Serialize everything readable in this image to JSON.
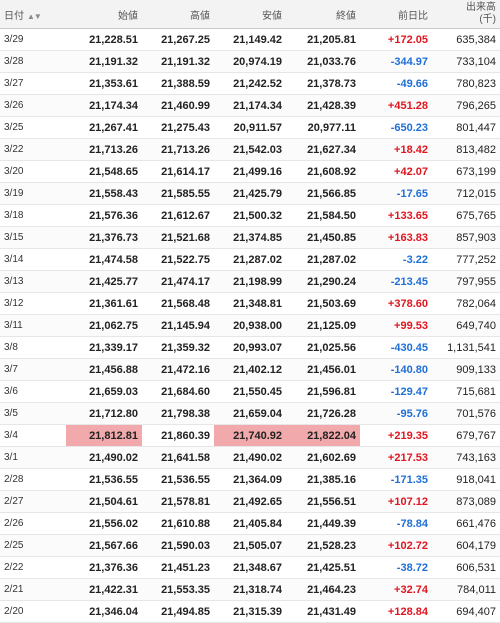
{
  "header": {
    "date": "日付",
    "open": "始値",
    "high": "高値",
    "low": "安値",
    "close": "終値",
    "change": "前日比",
    "volume_line1": "出来高",
    "volume_line2": "(千)"
  },
  "rows": [
    {
      "date": "3/29",
      "open": "21,228.51",
      "high": "21,267.25",
      "low": "21,149.42",
      "close": "21,205.81",
      "change": "+172.05",
      "volume": "635,384"
    },
    {
      "date": "3/28",
      "open": "21,191.32",
      "high": "21,191.32",
      "low": "20,974.19",
      "close": "21,033.76",
      "change": "-344.97",
      "volume": "733,104"
    },
    {
      "date": "3/27",
      "open": "21,353.61",
      "high": "21,388.59",
      "low": "21,242.52",
      "close": "21,378.73",
      "change": "-49.66",
      "volume": "780,823"
    },
    {
      "date": "3/26",
      "open": "21,174.34",
      "high": "21,460.99",
      "low": "21,174.34",
      "close": "21,428.39",
      "change": "+451.28",
      "volume": "796,265"
    },
    {
      "date": "3/25",
      "open": "21,267.41",
      "high": "21,275.43",
      "low": "20,911.57",
      "close": "20,977.11",
      "change": "-650.23",
      "volume": "801,447"
    },
    {
      "date": "3/22",
      "open": "21,713.26",
      "high": "21,713.26",
      "low": "21,542.03",
      "close": "21,627.34",
      "change": "+18.42",
      "volume": "813,482"
    },
    {
      "date": "3/20",
      "open": "21,548.65",
      "high": "21,614.17",
      "low": "21,499.16",
      "close": "21,608.92",
      "change": "+42.07",
      "volume": "673,199"
    },
    {
      "date": "3/19",
      "open": "21,558.43",
      "high": "21,585.55",
      "low": "21,425.79",
      "close": "21,566.85",
      "change": "-17.65",
      "volume": "712,015"
    },
    {
      "date": "3/18",
      "open": "21,576.36",
      "high": "21,612.67",
      "low": "21,500.32",
      "close": "21,584.50",
      "change": "+133.65",
      "volume": "675,765"
    },
    {
      "date": "3/15",
      "open": "21,376.73",
      "high": "21,521.68",
      "low": "21,374.85",
      "close": "21,450.85",
      "change": "+163.83",
      "volume": "857,903"
    },
    {
      "date": "3/14",
      "open": "21,474.58",
      "high": "21,522.75",
      "low": "21,287.02",
      "close": "21,287.02",
      "change": "-3.22",
      "volume": "777,252"
    },
    {
      "date": "3/13",
      "open": "21,425.77",
      "high": "21,474.17",
      "low": "21,198.99",
      "close": "21,290.24",
      "change": "-213.45",
      "volume": "797,955"
    },
    {
      "date": "3/12",
      "open": "21,361.61",
      "high": "21,568.48",
      "low": "21,348.81",
      "close": "21,503.69",
      "change": "+378.60",
      "volume": "782,064"
    },
    {
      "date": "3/11",
      "open": "21,062.75",
      "high": "21,145.94",
      "low": "20,938.00",
      "close": "21,125.09",
      "change": "+99.53",
      "volume": "649,740"
    },
    {
      "date": "3/8",
      "open": "21,339.17",
      "high": "21,359.32",
      "low": "20,993.07",
      "close": "21,025.56",
      "change": "-430.45",
      "volume": "1,131,541"
    },
    {
      "date": "3/7",
      "open": "21,456.88",
      "high": "21,472.16",
      "low": "21,402.12",
      "close": "21,456.01",
      "change": "-140.80",
      "volume": "909,133"
    },
    {
      "date": "3/6",
      "open": "21,659.03",
      "high": "21,684.60",
      "low": "21,550.45",
      "close": "21,596.81",
      "change": "-129.47",
      "volume": "715,681"
    },
    {
      "date": "3/5",
      "open": "21,712.80",
      "high": "21,798.38",
      "low": "21,659.04",
      "close": "21,726.28",
      "change": "-95.76",
      "volume": "701,576"
    },
    {
      "date": "3/4",
      "open": "21,812.81",
      "high": "21,860.39",
      "low": "21,740.92",
      "close": "21,822.04",
      "change": "+219.35",
      "volume": "679,767",
      "highlight": true
    },
    {
      "date": "3/1",
      "open": "21,490.02",
      "high": "21,641.58",
      "low": "21,490.02",
      "close": "21,602.69",
      "change": "+217.53",
      "volume": "743,163"
    },
    {
      "date": "2/28",
      "open": "21,536.55",
      "high": "21,536.55",
      "low": "21,364.09",
      "close": "21,385.16",
      "change": "-171.35",
      "volume": "918,041"
    },
    {
      "date": "2/27",
      "open": "21,504.61",
      "high": "21,578.81",
      "low": "21,492.65",
      "close": "21,556.51",
      "change": "+107.12",
      "volume": "873,089"
    },
    {
      "date": "2/26",
      "open": "21,556.02",
      "high": "21,610.88",
      "low": "21,405.84",
      "close": "21,449.39",
      "change": "-78.84",
      "volume": "661,476"
    },
    {
      "date": "2/25",
      "open": "21,567.66",
      "high": "21,590.03",
      "low": "21,505.07",
      "close": "21,528.23",
      "change": "+102.72",
      "volume": "604,179"
    },
    {
      "date": "2/22",
      "open": "21,376.36",
      "high": "21,451.23",
      "low": "21,348.67",
      "close": "21,425.51",
      "change": "-38.72",
      "volume": "606,531"
    },
    {
      "date": "2/21",
      "open": "21,422.31",
      "high": "21,553.35",
      "low": "21,318.74",
      "close": "21,464.23",
      "change": "+32.74",
      "volume": "784,011"
    },
    {
      "date": "2/20",
      "open": "21,346.04",
      "high": "21,494.85",
      "low": "21,315.39",
      "close": "21,431.49",
      "change": "+128.84",
      "volume": "694,407"
    }
  ],
  "colors": {
    "up": "#e0151f",
    "down": "#1f6fd6",
    "highlight": "#f1a9ab"
  },
  "icons": {
    "sort": "sort-arrows-icon"
  }
}
